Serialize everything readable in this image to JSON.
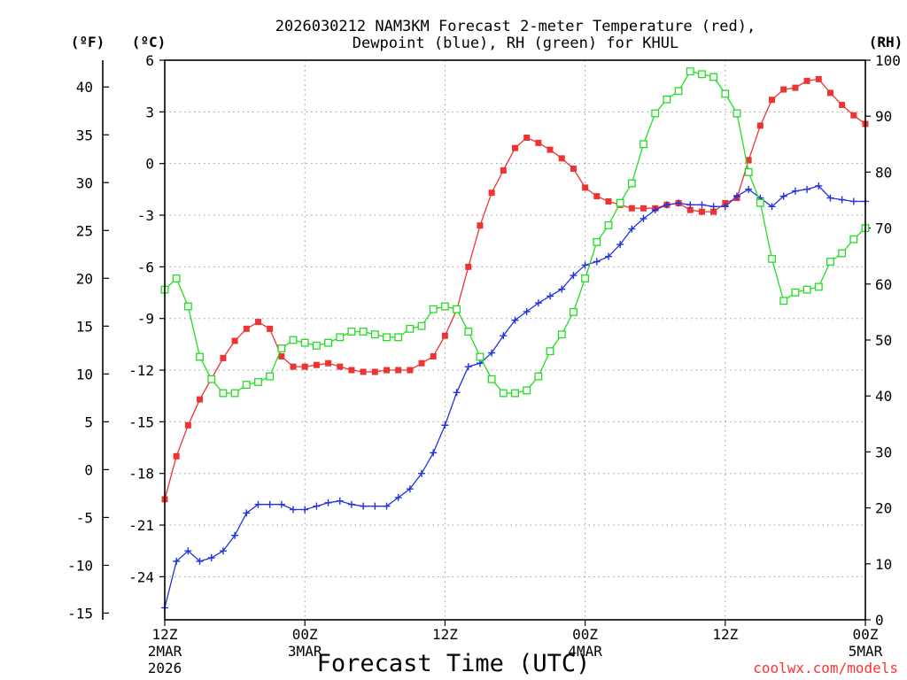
{
  "chart_data": {
    "type": "line",
    "title_line1": "2026030212 NAM3KM Forecast 2-meter Temperature (red),",
    "title_line2": "Dewpoint (blue), RH (green) for KHUL",
    "xlabel": "Forecast Time (UTC)",
    "credit": "coolwx.com/models",
    "unit_f": "(ºF)",
    "unit_c": "(ºC)",
    "unit_rh": "(RH)",
    "x_range_hours": [
      0,
      60
    ],
    "x_ticks": [
      {
        "hour": 0,
        "line1": "12Z",
        "line2": "2MAR",
        "line3": "2026"
      },
      {
        "hour": 12,
        "line1": "00Z",
        "line2": "3MAR",
        "line3": ""
      },
      {
        "hour": 24,
        "line1": "12Z",
        "line2": "",
        "line3": ""
      },
      {
        "hour": 36,
        "line1": "00Z",
        "line2": "4MAR",
        "line3": ""
      },
      {
        "hour": 48,
        "line1": "12Z",
        "line2": "",
        "line3": ""
      },
      {
        "hour": 60,
        "line1": "00Z",
        "line2": "5MAR",
        "line3": ""
      }
    ],
    "y_celsius_range": [
      -26.5,
      6.0
    ],
    "y_celsius_ticks": [
      6,
      3,
      0,
      -3,
      -6,
      -9,
      -12,
      -15,
      -18,
      -21,
      -24
    ],
    "y_fahrenheit_ticks": [
      40,
      35,
      30,
      25,
      20,
      15,
      10,
      5,
      0,
      -5,
      -10,
      -15
    ],
    "y_rh_range": [
      0,
      100
    ],
    "y_rh_ticks": [
      100,
      90,
      80,
      70,
      60,
      50,
      40,
      30,
      20,
      10,
      0
    ],
    "series": [
      {
        "name": "2-meter Temperature",
        "unit": "C",
        "color": "#ee3333",
        "marker": "filled-square",
        "values": [
          -19.5,
          -17.0,
          -15.2,
          -13.7,
          -12.5,
          -11.3,
          -10.3,
          -9.6,
          -9.2,
          -9.6,
          -11.2,
          -11.8,
          -11.8,
          -11.7,
          -11.6,
          -11.8,
          -12.0,
          -12.1,
          -12.1,
          -12.0,
          -12.0,
          -12.0,
          -11.6,
          -11.2,
          -10.0,
          -8.5,
          -6.0,
          -3.6,
          -1.7,
          -0.4,
          0.9,
          1.5,
          1.2,
          0.8,
          0.3,
          -0.3,
          -1.4,
          -1.9,
          -2.2,
          -2.4,
          -2.6,
          -2.6,
          -2.6,
          -2.4,
          -2.3,
          -2.7,
          -2.8,
          -2.8,
          -2.3,
          -2.0,
          0.2,
          2.2,
          3.7,
          4.3,
          4.4,
          4.8,
          4.9,
          4.1,
          3.4,
          2.8,
          2.3
        ]
      },
      {
        "name": "Dewpoint",
        "unit": "C",
        "color": "#2233dd",
        "marker": "plus",
        "values": [
          -25.8,
          -23.1,
          -22.5,
          -23.1,
          -22.9,
          -22.5,
          -21.6,
          -20.3,
          -19.8,
          -19.8,
          -19.8,
          -20.1,
          -20.1,
          -19.9,
          -19.7,
          -19.6,
          -19.8,
          -19.9,
          -19.9,
          -19.9,
          -19.4,
          -18.9,
          -18.0,
          -16.8,
          -15.2,
          -13.3,
          -11.8,
          -11.6,
          -11.0,
          -10.0,
          -9.1,
          -8.6,
          -8.1,
          -7.7,
          -7.3,
          -6.5,
          -5.9,
          -5.7,
          -5.4,
          -4.7,
          -3.8,
          -3.2,
          -2.7,
          -2.4,
          -2.3,
          -2.4,
          -2.4,
          -2.5,
          -2.5,
          -1.9,
          -1.5,
          -2.0,
          -2.5,
          -1.9,
          -1.6,
          -1.5,
          -1.3,
          -2.0,
          -2.1,
          -2.2,
          -2.2
        ]
      },
      {
        "name": "Relative Humidity",
        "unit": "%",
        "color": "#22dd22",
        "marker": "open-square",
        "values": [
          59,
          61,
          56,
          47,
          43,
          40.5,
          40.5,
          42,
          42.5,
          43.5,
          48.5,
          50,
          49.5,
          49,
          49.5,
          50.5,
          51.5,
          51.5,
          51,
          50.5,
          50.5,
          52,
          52.5,
          55.5,
          56,
          55.5,
          51.5,
          47,
          43,
          40.5,
          40.5,
          41,
          43.5,
          48,
          51,
          55,
          61,
          67.5,
          70.5,
          74.5,
          78,
          85,
          90.5,
          93,
          94.5,
          98,
          97.5,
          97,
          94,
          90.5,
          80,
          74.5,
          64.5,
          57,
          58.5,
          59,
          59.5,
          64,
          65.5,
          68,
          70
        ]
      }
    ]
  }
}
